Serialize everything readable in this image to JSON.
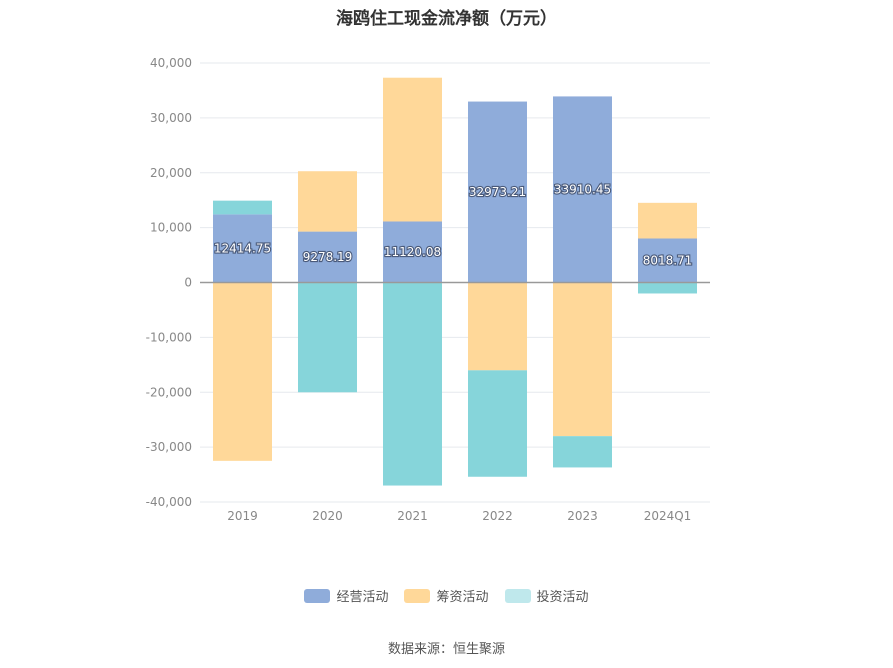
{
  "title": "海鸥住工现金流净额（万元）",
  "source": "数据来源：恒生聚源",
  "colors": {
    "operating": "#8facda",
    "financing": "#ffd899",
    "investing": "#86d5da",
    "investing_legend": "#bfe8ec",
    "grid": "#e6e9ee",
    "zero_line": "#999999"
  },
  "chart_data": {
    "type": "bar",
    "stacked": true,
    "title": "海鸥住工现金流净额（万元）",
    "categories": [
      "2019",
      "2020",
      "2021",
      "2022",
      "2023",
      "2024Q1"
    ],
    "ylim": [
      -40000,
      40000
    ],
    "yticks": [
      40000,
      30000,
      20000,
      10000,
      0,
      -10000,
      -20000,
      -30000,
      -40000
    ],
    "ytick_labels": [
      "40,000",
      "30,000",
      "20,000",
      "10,000",
      "0",
      "-10,000",
      "-20,000",
      "-30,000",
      "-40,000"
    ],
    "grid": true,
    "legend_position": "bottom",
    "series": [
      {
        "name": "经营活动",
        "color_key": "operating",
        "values": [
          12414.75,
          9278.19,
          11120.08,
          32973.21,
          33910.45,
          8018.71
        ],
        "labels": [
          "12414.75",
          "9278.19",
          "11120.08",
          "32973.21",
          "33910.45",
          "8018.71"
        ]
      },
      {
        "name": "筹资活动",
        "color_key": "financing",
        "values": [
          -32500,
          11000,
          26200,
          -16000,
          -28000,
          6500
        ]
      },
      {
        "name": "投资活动",
        "color_key": "investing",
        "values": [
          2500,
          -20000,
          -37000,
          -19400,
          -5700,
          -2000
        ]
      }
    ]
  }
}
